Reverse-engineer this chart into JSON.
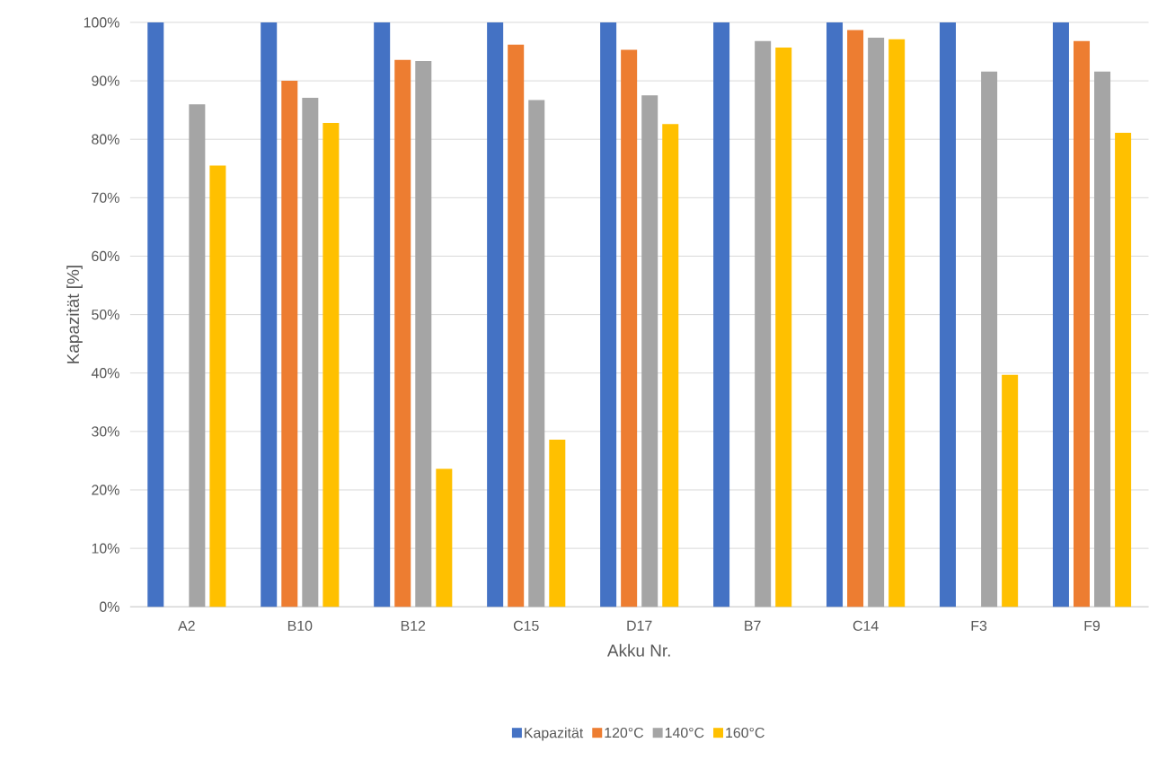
{
  "chart_data": {
    "type": "bar",
    "xlabel": "Akku Nr.",
    "ylabel": "Kapazität [%]",
    "categories": [
      "A2",
      "B10",
      "B12",
      "C15",
      "D17",
      "B7",
      "C14",
      "F3",
      "F9"
    ],
    "series": [
      {
        "name": "Kapazität",
        "color": "#4472c4",
        "values": [
          100,
          100,
          100,
          100,
          100,
          100,
          100,
          100,
          100
        ]
      },
      {
        "name": "120°C",
        "color": "#ed7d31",
        "values": [
          null,
          90.0,
          93.6,
          96.2,
          95.3,
          null,
          98.7,
          null,
          96.8
        ]
      },
      {
        "name": "140°C",
        "color": "#a5a5a5",
        "values": [
          86.0,
          87.1,
          93.4,
          86.7,
          87.5,
          96.8,
          97.4,
          91.6,
          91.6
        ]
      },
      {
        "name": "160°C",
        "color": "#ffc000",
        "values": [
          75.5,
          82.8,
          23.6,
          28.6,
          82.6,
          95.7,
          97.1,
          39.7,
          81.1
        ]
      }
    ],
    "ylim": [
      0,
      100
    ],
    "yticks": [
      {
        "value": 0,
        "label": "0%"
      },
      {
        "value": 10,
        "label": "10%"
      },
      {
        "value": 20,
        "label": "20%"
      },
      {
        "value": 30,
        "label": "30%"
      },
      {
        "value": 40,
        "label": "40%"
      },
      {
        "value": 50,
        "label": "50%"
      },
      {
        "value": 60,
        "label": "60%"
      },
      {
        "value": 70,
        "label": "70%"
      },
      {
        "value": 80,
        "label": "80%"
      },
      {
        "value": 90,
        "label": "90%"
      },
      {
        "value": 100,
        "label": "100%"
      }
    ],
    "grid": "y",
    "legend": "bottom"
  }
}
